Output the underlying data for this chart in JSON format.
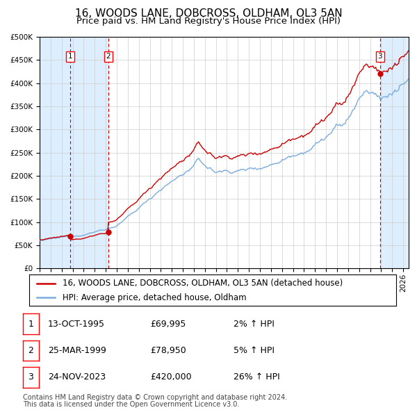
{
  "title": "16, WOODS LANE, DOBCROSS, OLDHAM, OL3 5AN",
  "subtitle": "Price paid vs. HM Land Registry's House Price Index (HPI)",
  "legend_line1": "16, WOODS LANE, DOBCROSS, OLDHAM, OL3 5AN (detached house)",
  "legend_line2": "HPI: Average price, detached house, Oldham",
  "footer1": "Contains HM Land Registry data © Crown copyright and database right 2024.",
  "footer2": "This data is licensed under the Open Government Licence v3.0.",
  "transactions": [
    {
      "label": "1",
      "date": "13-OCT-1995",
      "price": 69995,
      "hpi_pct": "2%",
      "year": 1995.79
    },
    {
      "label": "2",
      "date": "25-MAR-1999",
      "price": 78950,
      "hpi_pct": "5%",
      "year": 1999.23
    },
    {
      "label": "3",
      "date": "24-NOV-2023",
      "price": 420000,
      "hpi_pct": "26%",
      "year": 2023.9
    }
  ],
  "hpi_color": "#7aacdc",
  "price_color": "#cc0000",
  "dot_color": "#cc0000",
  "background_color": "#ffffff",
  "chart_bg": "#ffffff",
  "grid_color": "#cccccc",
  "shade_color": "#ddeeff",
  "dashed_color": "#cc0000",
  "ylim": [
    0,
    500000
  ],
  "yticks": [
    0,
    50000,
    100000,
    150000,
    200000,
    250000,
    300000,
    350000,
    400000,
    450000,
    500000
  ],
  "xlim_start": 1993.0,
  "xlim_end": 2026.5,
  "title_fontsize": 11,
  "subtitle_fontsize": 9.5,
  "axis_fontsize": 7.5,
  "legend_fontsize": 8.5,
  "table_fontsize": 9,
  "footer_fontsize": 7
}
